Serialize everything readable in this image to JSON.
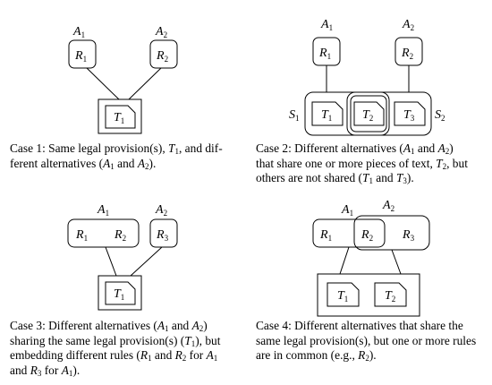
{
  "cases": [
    {
      "caption": [
        {
          "t": "Case 1: Same legal provision(s), "
        },
        {
          "t": "T",
          "i": 1
        },
        {
          "t": "1",
          "s": 1
        },
        {
          "t": ", and dif-"
        },
        {
          "br": 1
        },
        {
          "t": "ferent alternatives ("
        },
        {
          "t": "A",
          "i": 1
        },
        {
          "t": "1",
          "s": 1
        },
        {
          "t": " and "
        },
        {
          "t": "A",
          "i": 1
        },
        {
          "t": "2",
          "s": 1
        },
        {
          "t": ")."
        }
      ]
    },
    {
      "caption": [
        {
          "t": "Case 2: Different alternatives ("
        },
        {
          "t": "A",
          "i": 1
        },
        {
          "t": "1",
          "s": 1
        },
        {
          "t": " and "
        },
        {
          "t": "A",
          "i": 1
        },
        {
          "t": "2",
          "s": 1
        },
        {
          "t": ")"
        },
        {
          "br": 1
        },
        {
          "t": "that share one or more pieces of text, "
        },
        {
          "t": "T",
          "i": 1
        },
        {
          "t": "2",
          "s": 1
        },
        {
          "t": ", but"
        },
        {
          "br": 1
        },
        {
          "t": "others are not shared ("
        },
        {
          "t": "T",
          "i": 1
        },
        {
          "t": "1",
          "s": 1
        },
        {
          "t": " and "
        },
        {
          "t": "T",
          "i": 1
        },
        {
          "t": "3",
          "s": 1
        },
        {
          "t": ")."
        }
      ]
    },
    {
      "caption": [
        {
          "t": "Case 3: Different alternatives ("
        },
        {
          "t": "A",
          "i": 1
        },
        {
          "t": "1",
          "s": 1
        },
        {
          "t": " and "
        },
        {
          "t": "A",
          "i": 1
        },
        {
          "t": "2",
          "s": 1
        },
        {
          "t": ")"
        },
        {
          "br": 1
        },
        {
          "t": "sharing the same legal provision(s) ("
        },
        {
          "t": "T",
          "i": 1
        },
        {
          "t": "1",
          "s": 1
        },
        {
          "t": "), but"
        },
        {
          "br": 1
        },
        {
          "t": "embedding different rules ("
        },
        {
          "t": "R",
          "i": 1
        },
        {
          "t": "1",
          "s": 1
        },
        {
          "t": " and "
        },
        {
          "t": "R",
          "i": 1
        },
        {
          "t": "2",
          "s": 1
        },
        {
          "t": " for "
        },
        {
          "t": "A",
          "i": 1
        },
        {
          "t": "1",
          "s": 1
        },
        {
          "br": 1
        },
        {
          "t": "and "
        },
        {
          "t": "R",
          "i": 1
        },
        {
          "t": "3",
          "s": 1
        },
        {
          "t": " for "
        },
        {
          "t": "A",
          "i": 1
        },
        {
          "t": "1",
          "s": 1
        },
        {
          "t": ")."
        }
      ]
    },
    {
      "caption": [
        {
          "t": "Case 4: Different alternatives that share the"
        },
        {
          "br": 1
        },
        {
          "t": "same legal provision(s), but one or more rules"
        },
        {
          "br": 1
        },
        {
          "t": "are in common (e.g., "
        },
        {
          "t": "R",
          "i": 1
        },
        {
          "t": "2",
          "s": 1
        },
        {
          "t": ")."
        }
      ]
    }
  ],
  "labels": {
    "A": "A",
    "R": "R",
    "T": "T",
    "S": "S",
    "one": "1",
    "two": "2",
    "three": "3"
  }
}
